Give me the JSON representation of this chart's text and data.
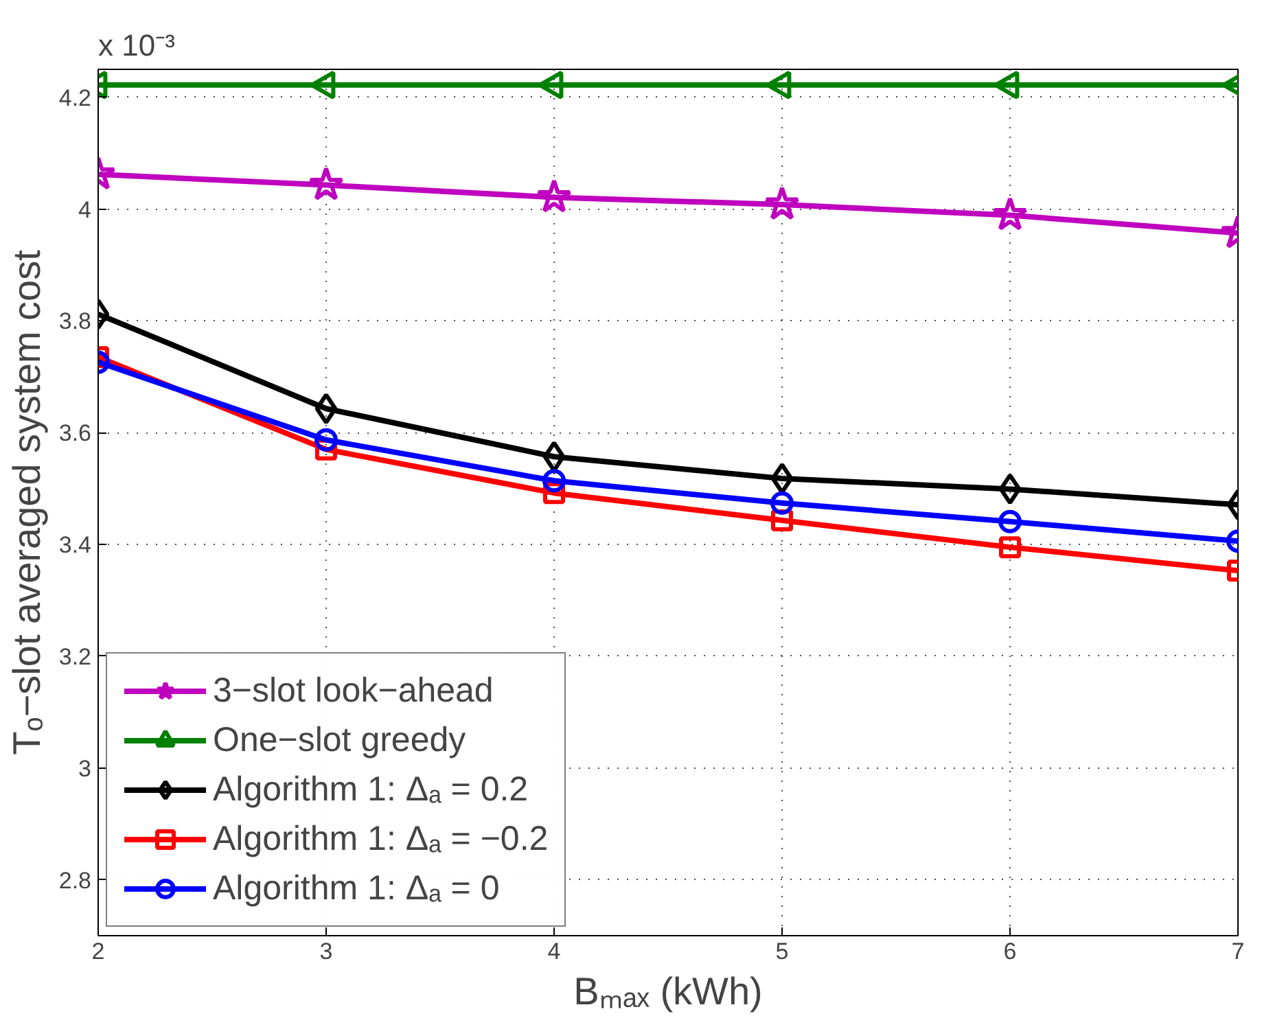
{
  "chart_data": {
    "type": "line",
    "xlabel": "Bₘₐₓ (kWh)",
    "ylabel": "Tₒ−slot averaged system cost",
    "annotations": [
      "x 10⁻³"
    ],
    "x": [
      2,
      3,
      4,
      5,
      6,
      7
    ],
    "xlim": [
      2,
      7
    ],
    "xticks": [
      2,
      3,
      4,
      5,
      6,
      7
    ],
    "ylim": [
      2.7,
      4.25
    ],
    "yticks": [
      2.8,
      3,
      3.2,
      3.4,
      3.6,
      3.8,
      4,
      4.2
    ],
    "grid": true,
    "legend": "bottom left",
    "line_style": "solid",
    "series": [
      {
        "name": "3−slot look−ahead",
        "color": "#bf00bf",
        "marker": "star",
        "values": [
          4.062,
          4.043,
          4.021,
          4.008,
          3.989,
          3.957
        ]
      },
      {
        "name": "One−slot greedy",
        "color": "#008000",
        "marker": "triangle",
        "values": [
          4.222,
          4.222,
          4.222,
          4.222,
          4.222,
          4.222
        ]
      },
      {
        "name": "Algorithm 1: Δₐ = 0.2",
        "color": "#000000",
        "marker": "diamond",
        "values": [
          3.812,
          3.643,
          3.557,
          3.518,
          3.499,
          3.471
        ]
      },
      {
        "name": "Algorithm 1: Δₐ = −0.2",
        "color": "#ff0000",
        "marker": "square",
        "values": [
          3.735,
          3.57,
          3.492,
          3.443,
          3.395,
          3.353
        ]
      },
      {
        "name": "Algorithm 1: Δₐ = 0",
        "color": "#0000ff",
        "marker": "circle",
        "values": [
          3.726,
          3.587,
          3.514,
          3.474,
          3.441,
          3.406
        ]
      }
    ]
  }
}
